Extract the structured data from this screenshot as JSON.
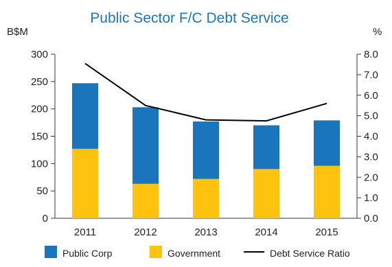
{
  "chart_data": {
    "type": "bar",
    "title": "Public Sector F/C Debt Service",
    "y_left_unit": "B$M",
    "y_right_unit": "%",
    "categories": [
      "2011",
      "2012",
      "2013",
      "2014",
      "2015"
    ],
    "left_ticks": [
      "0",
      "50",
      "100",
      "150",
      "200",
      "250",
      "300"
    ],
    "right_ticks": [
      "0.0",
      "1.0",
      "2.0",
      "3.0",
      "4.0",
      "5.0",
      "6.0",
      "7.0",
      "8.0"
    ],
    "ylim_left": [
      0,
      300
    ],
    "ylim_right": [
      0,
      8
    ],
    "stacked": true,
    "series": [
      {
        "name": "Government",
        "type": "bar",
        "color": "#FFC20E",
        "axis": "left",
        "values": [
          127,
          63,
          72,
          90,
          96
        ]
      },
      {
        "name": "Public Corp",
        "type": "bar",
        "color": "#1B75BC",
        "axis": "left",
        "values": [
          120,
          140,
          105,
          80,
          83
        ]
      },
      {
        "name": "Debt Service Ratio",
        "type": "line",
        "color": "#000000",
        "axis": "right",
        "values": [
          7.55,
          5.5,
          4.8,
          4.75,
          5.6
        ]
      }
    ],
    "legend": [
      "Public Corp",
      "Government",
      "Debt Service Ratio"
    ],
    "legend_placement": "bottom",
    "grid": false,
    "colors": {
      "title": "#1B75BC",
      "text": "#222222",
      "axis": "#333333"
    }
  }
}
